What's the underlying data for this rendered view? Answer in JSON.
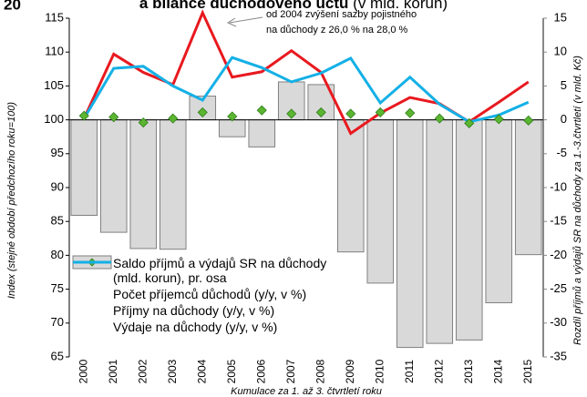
{
  "chart_data": {
    "type": "bar_line",
    "figure_number": "20",
    "title": "a bilance důchodového účtu",
    "title_unit": "(v mld. korun)",
    "annotation": [
      "od 2004 zvýšení sazby pojistného",
      "na důchody z 26,0 % na 28,0 %"
    ],
    "x_label": "Kumulace za 1. až 3. čtvrtletí roku",
    "y_label": "Index (stejné období předchozího roku=100)",
    "y2_label": "Rozdíl příjmů a výdajů SR na důchody za 1.-3.čtvrtletí (v mld. Kč)",
    "categories": [
      "2000",
      "2001",
      "2002",
      "2003",
      "2004",
      "2005",
      "2006",
      "2007",
      "2008",
      "2009",
      "2010",
      "2011",
      "2012",
      "2013",
      "2014",
      "2015"
    ],
    "ylim": [
      65,
      115
    ],
    "yticks": [
      65,
      70,
      75,
      80,
      85,
      90,
      95,
      100,
      105,
      110,
      115
    ],
    "y2lim": [
      -35,
      15
    ],
    "y2ticks": [
      -35,
      -30,
      -25,
      -20,
      -15,
      -10,
      -5,
      0,
      5,
      10,
      15
    ],
    "grid": false,
    "series": [
      {
        "name": "Saldo příjmů a výdajů SR na důchody (mld. korun), pr. osa",
        "type": "bar",
        "axis": "y2",
        "color": "#d9d9d9",
        "values": [
          -14.1,
          -16.6,
          -19.0,
          -19.1,
          3.5,
          -2.5,
          -4.0,
          5.6,
          5.2,
          -19.5,
          -24.1,
          -33.6,
          -33.0,
          -32.5,
          -27.0,
          -19.9
        ]
      },
      {
        "name": "Počet příjemců důchodů (y/y, v %)",
        "type": "marker",
        "color": "#5cb531",
        "values": [
          100.6,
          100.4,
          99.6,
          100.2,
          101.1,
          100.5,
          101.4,
          100.9,
          101.1,
          100.9,
          101.1,
          101.0,
          100.2,
          99.5,
          100.1,
          99.9
        ]
      },
      {
        "name": "Příjmy na důchody (y/y, v %)",
        "type": "line",
        "color": "#e8191f",
        "values": [
          100.2,
          109.7,
          107.0,
          105.2,
          115.8,
          106.3,
          107.1,
          110.2,
          107.0,
          98.0,
          101.0,
          103.3,
          102.4,
          99.7,
          102.6,
          105.6
        ]
      },
      {
        "name": "Výdaje na důchody (y/y, v %)",
        "type": "line",
        "color": "#14b0e6",
        "values": [
          100.2,
          107.6,
          107.9,
          105.0,
          102.9,
          109.2,
          107.7,
          105.6,
          106.9,
          109.1,
          102.5,
          106.3,
          102.3,
          99.7,
          100.7,
          102.6
        ]
      }
    ]
  }
}
